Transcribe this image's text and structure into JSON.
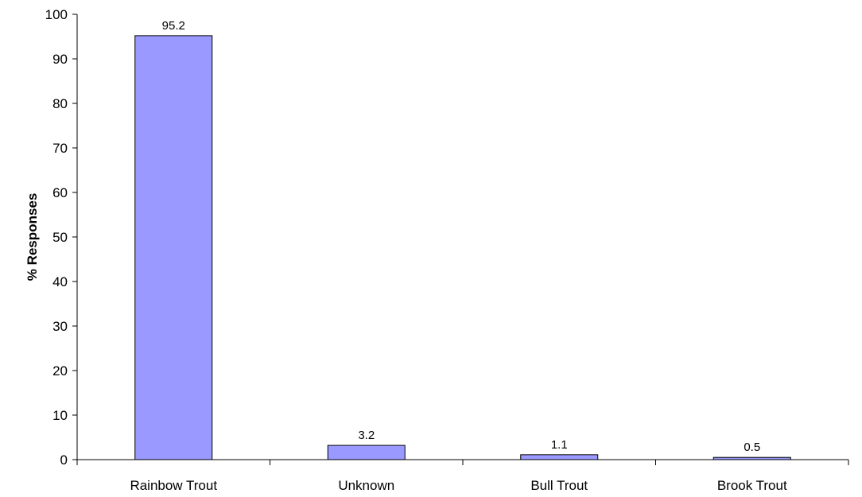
{
  "chart_data": {
    "type": "bar",
    "title": "",
    "xlabel": "",
    "ylabel": "% Responses",
    "categories": [
      "Rainbow Trout",
      "Unknown",
      "Bull Trout",
      "Brook Trout"
    ],
    "values": [
      95.2,
      3.2,
      1.1,
      0.5
    ],
    "data_labels": [
      "95.2",
      "3.2",
      "1.1",
      "0.5"
    ],
    "ylim": [
      0,
      100
    ],
    "yticks": [
      0,
      10,
      20,
      30,
      40,
      50,
      60,
      70,
      80,
      90,
      100
    ],
    "grid": false,
    "legend": "none",
    "bar_color": "#9999ff",
    "bar_edge_color": "#000000"
  }
}
